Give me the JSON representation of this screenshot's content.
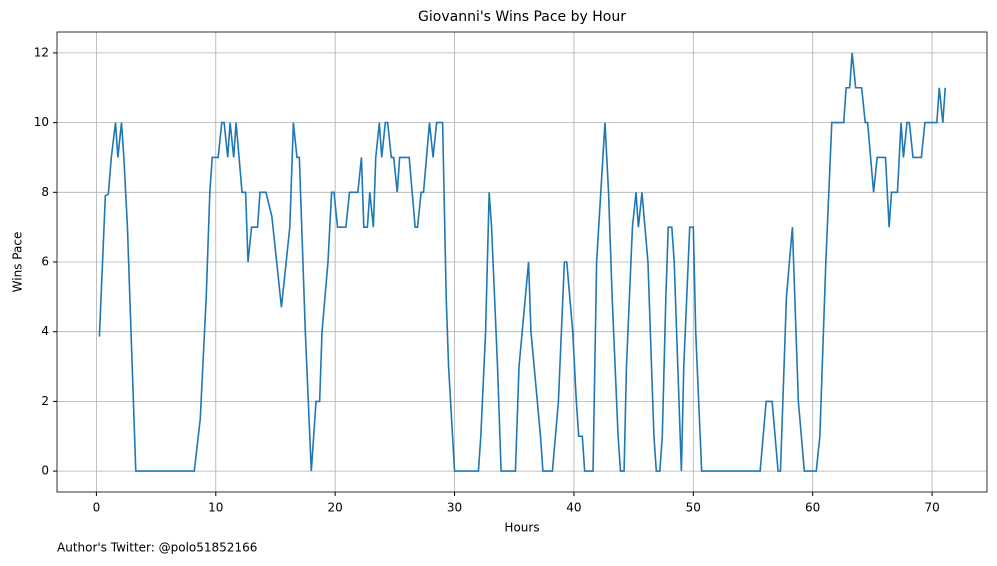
{
  "chart_data": {
    "type": "line",
    "title": "Giovanni's Wins Pace by Hour",
    "xlabel": "Hours",
    "ylabel": "Wins Pace",
    "footnote": "Author's Twitter: @polo51852166",
    "x": [
      0.25,
      0.75,
      1.0,
      1.25,
      1.6,
      1.8,
      2.1,
      2.3,
      2.6,
      2.8,
      3.1,
      3.3,
      8.2,
      8.7,
      9.2,
      9.5,
      9.7,
      10.2,
      10.5,
      10.7,
      11.0,
      11.2,
      11.5,
      11.7,
      12.2,
      12.5,
      12.7,
      13.0,
      13.5,
      13.7,
      14.2,
      14.7,
      15.1,
      15.5,
      16.2,
      16.5,
      16.8,
      17.0,
      17.2,
      17.5,
      18.0,
      18.4,
      18.7,
      18.9,
      19.4,
      19.7,
      19.9,
      20.2,
      20.9,
      21.2,
      21.9,
      22.2,
      22.4,
      22.7,
      22.9,
      23.2,
      23.4,
      23.7,
      23.9,
      24.2,
      24.4,
      24.7,
      24.9,
      25.2,
      25.4,
      26.2,
      26.7,
      26.9,
      27.2,
      27.4,
      27.9,
      28.2,
      28.5,
      29.0,
      29.3,
      29.5,
      30.0,
      32.0,
      32.2,
      32.6,
      32.9,
      33.1,
      33.6,
      33.9,
      35.1,
      35.4,
      36.2,
      36.4,
      37.2,
      37.4,
      38.2,
      38.7,
      39.2,
      39.4,
      39.9,
      40.2,
      40.4,
      40.7,
      40.9,
      41.6,
      41.9,
      42.6,
      42.9,
      43.2,
      43.7,
      43.9,
      44.2,
      44.4,
      44.9,
      45.2,
      45.4,
      45.7,
      46.2,
      46.4,
      46.7,
      46.9,
      47.2,
      47.4,
      47.7,
      47.9,
      48.2,
      48.4,
      48.7,
      49.0,
      49.2,
      49.7,
      50.0,
      50.2,
      50.7,
      55.6,
      56.1,
      56.6,
      57.1,
      57.3,
      57.8,
      58.3,
      58.8,
      59.3,
      60.3,
      60.6,
      61.1,
      61.6,
      62.6,
      62.8,
      63.1,
      63.3,
      63.6,
      64.1,
      64.4,
      64.6,
      65.1,
      65.4,
      66.1,
      66.4,
      66.6,
      67.1,
      67.4,
      67.6,
      67.9,
      68.1,
      68.4,
      69.1,
      69.4,
      70.1,
      70.4,
      70.6,
      70.9,
      71.1
    ],
    "series": [
      {
        "name": "Wins Pace",
        "color": "#1f77b4",
        "values": [
          3.86,
          7.9,
          7.95,
          9,
          10,
          9,
          10,
          9,
          7,
          5,
          2,
          0,
          0,
          1.5,
          5,
          8,
          9,
          9,
          10,
          10,
          9,
          10,
          9,
          10,
          8,
          8,
          6,
          7,
          7,
          8,
          8,
          7.3,
          6,
          4.7,
          7,
          10,
          9,
          9,
          7,
          4,
          0,
          2,
          2,
          4,
          6,
          8,
          8,
          7,
          7,
          8,
          8,
          9,
          7,
          7,
          8,
          7,
          9,
          10,
          9,
          10,
          10,
          9,
          9,
          8,
          9,
          9,
          7,
          7,
          8,
          8,
          10,
          9,
          10,
          10,
          5,
          3,
          0,
          0,
          1,
          4,
          8,
          7,
          3,
          0,
          0,
          3,
          6,
          4,
          1,
          0,
          0,
          2,
          6,
          6,
          4,
          2,
          1,
          1,
          0,
          0,
          6,
          10,
          8,
          5,
          1,
          0,
          0,
          3,
          7,
          8,
          7,
          8,
          6,
          4,
          1,
          0,
          0,
          1,
          5,
          7,
          7,
          6,
          3,
          0,
          3,
          7,
          7,
          4,
          0,
          0,
          2,
          2,
          0,
          0,
          5,
          7,
          2,
          0,
          0,
          1,
          6,
          10,
          10,
          11,
          11,
          12,
          11,
          11,
          10,
          10,
          8,
          9,
          9,
          7,
          8,
          8,
          10,
          9,
          10,
          10,
          9,
          9,
          10,
          10,
          10,
          11,
          10,
          11
        ]
      }
    ],
    "xlim": [
      -3.3,
      74.6
    ],
    "ylim": [
      -0.6,
      12.6
    ],
    "xticks": [
      0,
      10,
      20,
      30,
      40,
      50,
      60,
      70
    ],
    "yticks": [
      0,
      2,
      4,
      6,
      8,
      10,
      12
    ],
    "grid": true
  }
}
